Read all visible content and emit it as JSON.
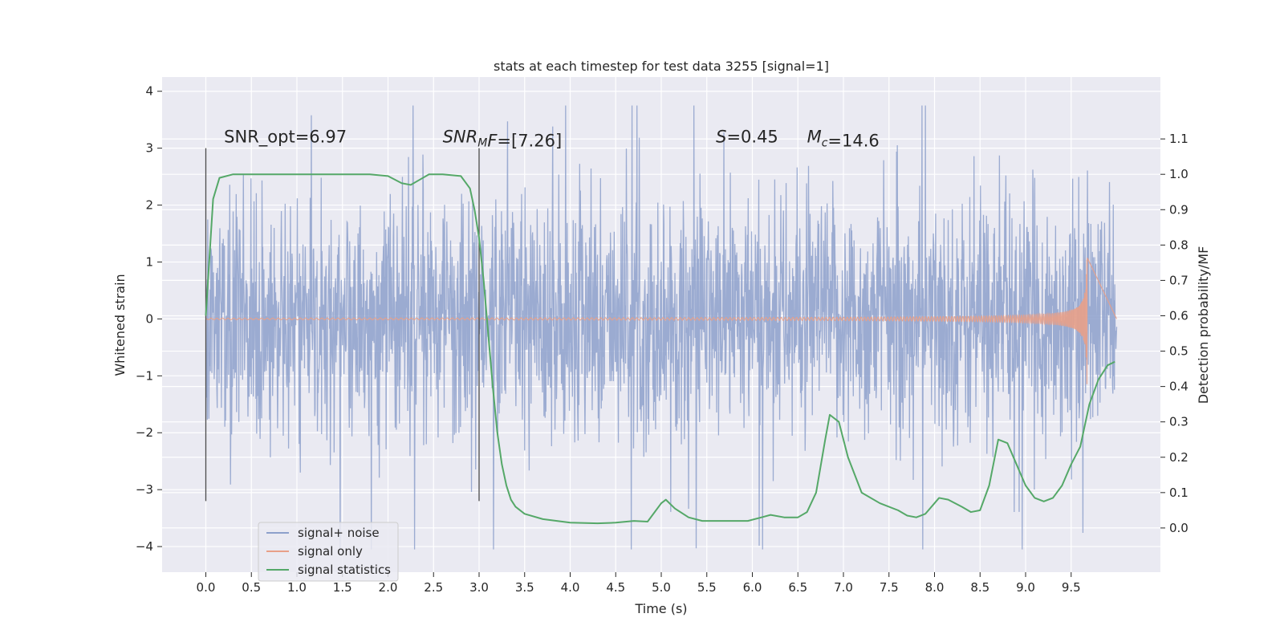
{
  "chart_data": {
    "type": "line",
    "title": "stats at each timestep for test data 3255 [signal=1]",
    "xlabel": "Time (s)",
    "ylabel": "Whitened strain",
    "y2label": "Detection probability/MF",
    "xlim": [
      -0.48,
      10.48
    ],
    "ylim": [
      -4.45,
      4.25
    ],
    "y2lim": [
      -0.125,
      1.275
    ],
    "x_ticks": [
      "0.0",
      "0.5",
      "1.0",
      "1.5",
      "2.0",
      "2.5",
      "3.0",
      "3.5",
      "4.0",
      "4.5",
      "5.0",
      "5.5",
      "6.0",
      "6.5",
      "7.0",
      "7.5",
      "8.0",
      "8.5",
      "9.0",
      "9.5"
    ],
    "y_ticks": [
      "−4",
      "−3",
      "−2",
      "−1",
      "0",
      "1",
      "2",
      "3",
      "4"
    ],
    "y2_ticks": [
      "0.0",
      "0.1",
      "0.2",
      "0.3",
      "0.4",
      "0.5",
      "0.6",
      "0.7",
      "0.8",
      "0.9",
      "1.0",
      "1.1"
    ],
    "grid": true,
    "legend_position": "lower-left",
    "vertical_markers": [
      0.0,
      3.0
    ],
    "annotations": [
      {
        "id": "snr-opt",
        "parts": [
          {
            "t": "SNR_opt=6.97"
          }
        ],
        "x": 0.2,
        "y": 3.1
      },
      {
        "id": "snr-mf",
        "parts": [
          {
            "t": "SNR",
            "i": true
          },
          {
            "t": "M",
            "i": true,
            "sub": true
          },
          {
            "t": "F",
            "i": true
          },
          {
            "t": "=[7.26]"
          }
        ],
        "x": 2.6,
        "y": 3.1
      },
      {
        "id": "s-value",
        "parts": [
          {
            "t": "S",
            "i": true
          },
          {
            "t": "=0.45"
          }
        ],
        "x": 5.6,
        "y": 3.1
      },
      {
        "id": "chirp-mass",
        "parts": [
          {
            "t": "M",
            "i": true
          },
          {
            "t": "c",
            "i": true,
            "sub": true
          },
          {
            "t": "=14.6"
          }
        ],
        "x": 6.6,
        "y": 3.1
      }
    ],
    "series": [
      {
        "name": "signal+ noise",
        "color": "#8da0cb",
        "kind": "noise",
        "x_range": [
          0.0,
          10.0
        ],
        "sigma": 1.0
      },
      {
        "name": "signal only",
        "color": "#e8a088",
        "kind": "chirp",
        "x_range": [
          0.0,
          9.68
        ],
        "merger_time": 9.68,
        "peak_amplitude": 1.3
      },
      {
        "name": "signal statistics",
        "color": "#55a868",
        "axis": "right",
        "kind": "line",
        "x": [
          0.0,
          0.08,
          0.15,
          0.3,
          0.5,
          1.0,
          1.5,
          1.8,
          2.0,
          2.15,
          2.25,
          2.35,
          2.45,
          2.6,
          2.8,
          2.9,
          2.95,
          3.0,
          3.05,
          3.1,
          3.15,
          3.2,
          3.25,
          3.3,
          3.35,
          3.4,
          3.5,
          3.7,
          4.0,
          4.3,
          4.5,
          4.7,
          4.85,
          5.0,
          5.05,
          5.15,
          5.3,
          5.45,
          5.7,
          5.95,
          6.1,
          6.2,
          6.35,
          6.5,
          6.6,
          6.7,
          6.8,
          6.85,
          6.95,
          7.05,
          7.2,
          7.4,
          7.6,
          7.7,
          7.8,
          7.9,
          8.05,
          8.15,
          8.3,
          8.4,
          8.5,
          8.6,
          8.7,
          8.8,
          8.9,
          9.0,
          9.1,
          9.2,
          9.3,
          9.4,
          9.5,
          9.6,
          9.7,
          9.8,
          9.9,
          9.98
        ],
        "y": [
          0.6,
          0.93,
          0.99,
          1.0,
          1.0,
          1.0,
          1.0,
          1.0,
          0.995,
          0.975,
          0.97,
          0.985,
          1.0,
          1.0,
          0.995,
          0.96,
          0.9,
          0.82,
          0.7,
          0.55,
          0.4,
          0.27,
          0.18,
          0.12,
          0.08,
          0.06,
          0.04,
          0.025,
          0.015,
          0.013,
          0.015,
          0.02,
          0.018,
          0.07,
          0.08,
          0.055,
          0.03,
          0.02,
          0.02,
          0.02,
          0.03,
          0.037,
          0.03,
          0.03,
          0.045,
          0.1,
          0.25,
          0.32,
          0.3,
          0.2,
          0.1,
          0.07,
          0.05,
          0.035,
          0.03,
          0.04,
          0.085,
          0.08,
          0.06,
          0.045,
          0.05,
          0.12,
          0.25,
          0.24,
          0.18,
          0.12,
          0.085,
          0.075,
          0.085,
          0.12,
          0.18,
          0.23,
          0.35,
          0.42,
          0.46,
          0.47
        ]
      }
    ]
  }
}
